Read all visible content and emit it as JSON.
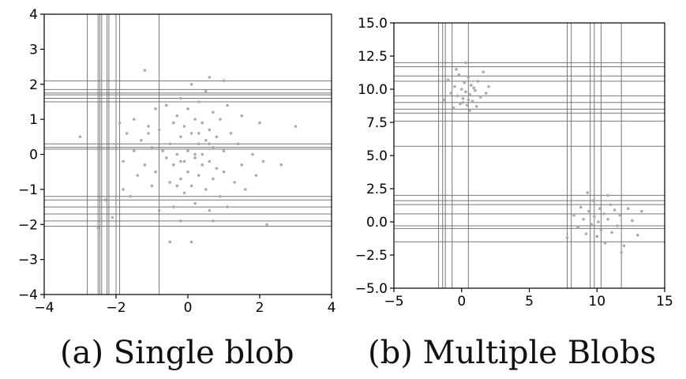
{
  "captions": {
    "a": "(a) Single blob",
    "b": "(b) Multiple Blobs"
  },
  "chart_data": [
    {
      "type": "scatter",
      "title": "",
      "xlabel": "",
      "ylabel": "",
      "xlim": [
        -4,
        4
      ],
      "ylim": [
        -4,
        4
      ],
      "xticks": [
        -4,
        -2,
        0,
        2,
        4
      ],
      "yticks": [
        -4,
        -3,
        -2,
        -1,
        0,
        1,
        2,
        3,
        4
      ],
      "xtick_labels": [
        "−4",
        "−2",
        "0",
        "2",
        "4"
      ],
      "ytick_labels": [
        "−4",
        "−3",
        "−2",
        "−1",
        "0",
        "1",
        "2",
        "3",
        "4"
      ],
      "grid": false,
      "point_color": "#aaaaaa",
      "line_color": "#777777",
      "points": [
        [
          -3.0,
          0.5
        ],
        [
          -2.5,
          -2.1
        ],
        [
          -2.3,
          -1.3
        ],
        [
          -2.1,
          -1.8
        ],
        [
          -2.0,
          0.3
        ],
        [
          -1.9,
          0.9
        ],
        [
          -1.8,
          -1.0
        ],
        [
          -1.8,
          -0.2
        ],
        [
          -1.7,
          0.6
        ],
        [
          -1.6,
          -1.2
        ],
        [
          -1.5,
          0.1
        ],
        [
          -1.5,
          1.0
        ],
        [
          -1.4,
          -0.6
        ],
        [
          -1.3,
          0.4
        ],
        [
          -1.2,
          -0.3
        ],
        [
          -1.2,
          2.4
        ],
        [
          -1.1,
          0.8
        ],
        [
          -1.0,
          -0.9
        ],
        [
          -1.0,
          0.2
        ],
        [
          -0.9,
          1.3
        ],
        [
          -0.9,
          -0.5
        ],
        [
          -0.8,
          0.7
        ],
        [
          -0.8,
          -1.6
        ],
        [
          -0.7,
          0.1
        ],
        [
          -0.6,
          -0.1
        ],
        [
          -0.6,
          1.4
        ],
        [
          -0.5,
          0.3
        ],
        [
          -0.5,
          -0.8
        ],
        [
          -0.4,
          -0.3
        ],
        [
          -0.4,
          0.9
        ],
        [
          -0.4,
          -1.5
        ],
        [
          -0.3,
          1.1
        ],
        [
          -0.3,
          0.0
        ],
        [
          -0.2,
          -0.7
        ],
        [
          -0.2,
          0.5
        ],
        [
          -0.2,
          1.6
        ],
        [
          -0.1,
          -0.2
        ],
        [
          -0.1,
          0.8
        ],
        [
          -0.1,
          -1.1
        ],
        [
          0.0,
          0.1
        ],
        [
          0.0,
          1.3
        ],
        [
          0.0,
          -0.5
        ],
        [
          0.1,
          0.6
        ],
        [
          0.1,
          -0.9
        ],
        [
          0.1,
          2.0
        ],
        [
          0.2,
          -0.1
        ],
        [
          0.2,
          1.0
        ],
        [
          0.2,
          -1.4
        ],
        [
          0.3,
          0.3
        ],
        [
          0.3,
          -0.6
        ],
        [
          0.3,
          1.5
        ],
        [
          0.4,
          0.0
        ],
        [
          0.4,
          -0.3
        ],
        [
          0.4,
          0.9
        ],
        [
          0.5,
          -1.0
        ],
        [
          0.5,
          0.4
        ],
        [
          0.5,
          1.8
        ],
        [
          0.6,
          -0.2
        ],
        [
          0.6,
          0.7
        ],
        [
          0.6,
          -1.6
        ],
        [
          0.7,
          0.2
        ],
        [
          0.7,
          1.2
        ],
        [
          0.7,
          -0.7
        ],
        [
          0.8,
          -0.4
        ],
        [
          0.8,
          0.5
        ],
        [
          0.9,
          1.0
        ],
        [
          0.9,
          -1.2
        ],
        [
          1.0,
          0.1
        ],
        [
          1.0,
          -0.5
        ],
        [
          1.1,
          1.4
        ],
        [
          1.1,
          -1.5
        ],
        [
          1.2,
          0.6
        ],
        [
          1.3,
          -0.8
        ],
        [
          1.4,
          0.3
        ],
        [
          1.5,
          -0.3
        ],
        [
          1.5,
          1.1
        ],
        [
          1.6,
          -1.0
        ],
        [
          1.8,
          0.0
        ],
        [
          1.9,
          -0.6
        ],
        [
          2.0,
          0.9
        ],
        [
          2.1,
          -0.2
        ],
        [
          2.2,
          -2.0
        ],
        [
          2.6,
          -0.3
        ],
        [
          3.0,
          0.8
        ],
        [
          -0.5,
          -2.5
        ],
        [
          0.1,
          -2.5
        ],
        [
          0.7,
          -1.9
        ],
        [
          0.6,
          2.2
        ],
        [
          1.0,
          2.1
        ],
        [
          -0.2,
          -1.9
        ],
        [
          -1.1,
          0.6
        ],
        [
          -0.2,
          -0.2
        ],
        [
          0.3,
          0.6
        ],
        [
          0.6,
          0.3
        ],
        [
          -0.3,
          -0.9
        ],
        [
          0.2,
          0.0
        ]
      ],
      "h_splits": [
        1.6,
        1.7,
        1.75,
        1.85,
        1.5,
        2.1,
        0.2,
        0.3,
        0.15,
        -1.2,
        -1.3,
        -1.5,
        -1.7,
        -1.9,
        -2.05
      ],
      "v_splits": [
        -2.8,
        -2.5,
        -2.45,
        -2.4,
        -2.25,
        -2.2,
        -2.0,
        -1.9,
        -0.8
      ]
    },
    {
      "type": "scatter",
      "title": "",
      "xlabel": "",
      "ylabel": "",
      "xlim": [
        -5,
        15
      ],
      "ylim": [
        -5,
        15
      ],
      "xticks": [
        -5,
        0,
        5,
        10,
        15
      ],
      "yticks": [
        -5.0,
        -2.5,
        0.0,
        2.5,
        5.0,
        7.5,
        10.0,
        12.5,
        15.0
      ],
      "xtick_labels": [
        "−5",
        "0",
        "5",
        "10",
        "15"
      ],
      "ytick_labels": [
        "−5.0",
        "−2.5",
        "0.0",
        "2.5",
        "5.0",
        "7.5",
        "10.0",
        "12.5",
        "15.0"
      ],
      "grid": false,
      "point_color": "#aaaaaa",
      "line_color": "#777777",
      "points": [
        [
          -1.3,
          9.2
        ],
        [
          -1.0,
          10.7
        ],
        [
          -0.8,
          9.7
        ],
        [
          -0.6,
          8.6
        ],
        [
          -0.5,
          10.2
        ],
        [
          -0.3,
          9.5
        ],
        [
          -0.2,
          11.1
        ],
        [
          -0.1,
          8.9
        ],
        [
          0.0,
          10.0
        ],
        [
          0.1,
          9.3
        ],
        [
          0.2,
          10.5
        ],
        [
          0.3,
          9.8
        ],
        [
          0.4,
          8.8
        ],
        [
          0.5,
          10.9
        ],
        [
          0.6,
          9.6
        ],
        [
          0.7,
          10.3
        ],
        [
          0.8,
          9.1
        ],
        [
          0.9,
          10.1
        ],
        [
          1.0,
          9.9
        ],
        [
          1.1,
          8.7
        ],
        [
          1.2,
          10.6
        ],
        [
          1.4,
          9.4
        ],
        [
          1.6,
          11.3
        ],
        [
          1.8,
          9.7
        ],
        [
          2.0,
          10.2
        ],
        [
          -0.4,
          11.5
        ],
        [
          0.3,
          12.0
        ],
        [
          0.6,
          8.4
        ],
        [
          0.1,
          9.0
        ],
        [
          0.5,
          9.2
        ],
        [
          7.8,
          -1.2
        ],
        [
          8.3,
          0.5
        ],
        [
          8.6,
          -0.4
        ],
        [
          8.8,
          1.1
        ],
        [
          9.0,
          0.2
        ],
        [
          9.2,
          -0.9
        ],
        [
          9.4,
          0.8
        ],
        [
          9.6,
          -0.2
        ],
        [
          9.7,
          1.6
        ],
        [
          9.8,
          0.4
        ],
        [
          10.0,
          -1.1
        ],
        [
          10.1,
          0.0
        ],
        [
          10.2,
          1.0
        ],
        [
          10.3,
          -0.6
        ],
        [
          10.5,
          0.6
        ],
        [
          10.6,
          -1.6
        ],
        [
          10.8,
          0.2
        ],
        [
          11.0,
          1.3
        ],
        [
          11.1,
          -0.8
        ],
        [
          11.3,
          0.9
        ],
        [
          11.5,
          -0.3
        ],
        [
          11.7,
          0.5
        ],
        [
          12.0,
          -1.8
        ],
        [
          12.3,
          1.0
        ],
        [
          12.6,
          0.1
        ],
        [
          13.0,
          -1.0
        ],
        [
          13.3,
          0.8
        ],
        [
          10.8,
          2.0
        ],
        [
          9.3,
          2.2
        ],
        [
          11.8,
          -2.3
        ]
      ],
      "h_splits": [
        5.7,
        9.0,
        9.5,
        10.6,
        11.0,
        11.7,
        12.0,
        7.6,
        8.2,
        8.5,
        -0.3,
        0.6,
        1.3,
        1.6,
        2.0,
        -0.5,
        -1.5
      ],
      "v_splits": [
        -1.7,
        -1.4,
        -1.2,
        -0.7,
        0.5,
        7.8,
        8.1,
        9.5,
        9.8,
        10.3,
        11.8
      ]
    }
  ]
}
